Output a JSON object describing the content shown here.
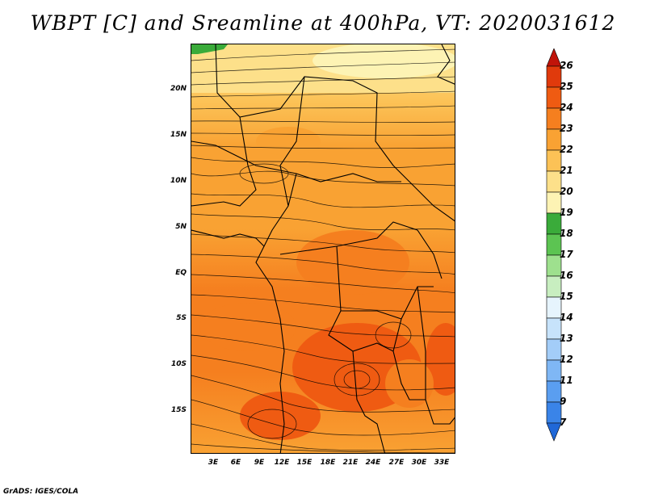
{
  "title": "WBPT [C] and Sreamline at 400hPa, VT: 2020031612",
  "footer": "GrADS: IGES/COLA",
  "map": {
    "lat_labels": [
      "20N",
      "15N",
      "10N",
      "5N",
      "EQ",
      "5S",
      "10S",
      "15S"
    ],
    "lon_labels": [
      "3E",
      "6E",
      "9E",
      "12E",
      "15E",
      "18E",
      "21E",
      "24E",
      "27E",
      "30E",
      "33E"
    ],
    "field": "Wet-bulb potential temperature (shaded) with streamlines",
    "level": "400hPa"
  },
  "colorbar": {
    "labels": [
      "7",
      "9",
      "11",
      "12",
      "13",
      "14",
      "15",
      "16",
      "17",
      "18",
      "19",
      "20",
      "21",
      "22",
      "23",
      "24",
      "25",
      "26"
    ],
    "colors": [
      "#2068d8",
      "#3a84e8",
      "#5a9ef0",
      "#7fb7f5",
      "#a3cdf8",
      "#c7e3fb",
      "#e6f4fd",
      "#c8eec0",
      "#9ee08e",
      "#5cc452",
      "#3aab3a",
      "#fdf3b4",
      "#fde08a",
      "#fcc256",
      "#f9a233",
      "#f57f1f",
      "#ef5b12",
      "#e03a0c",
      "#c0140a"
    ]
  }
}
